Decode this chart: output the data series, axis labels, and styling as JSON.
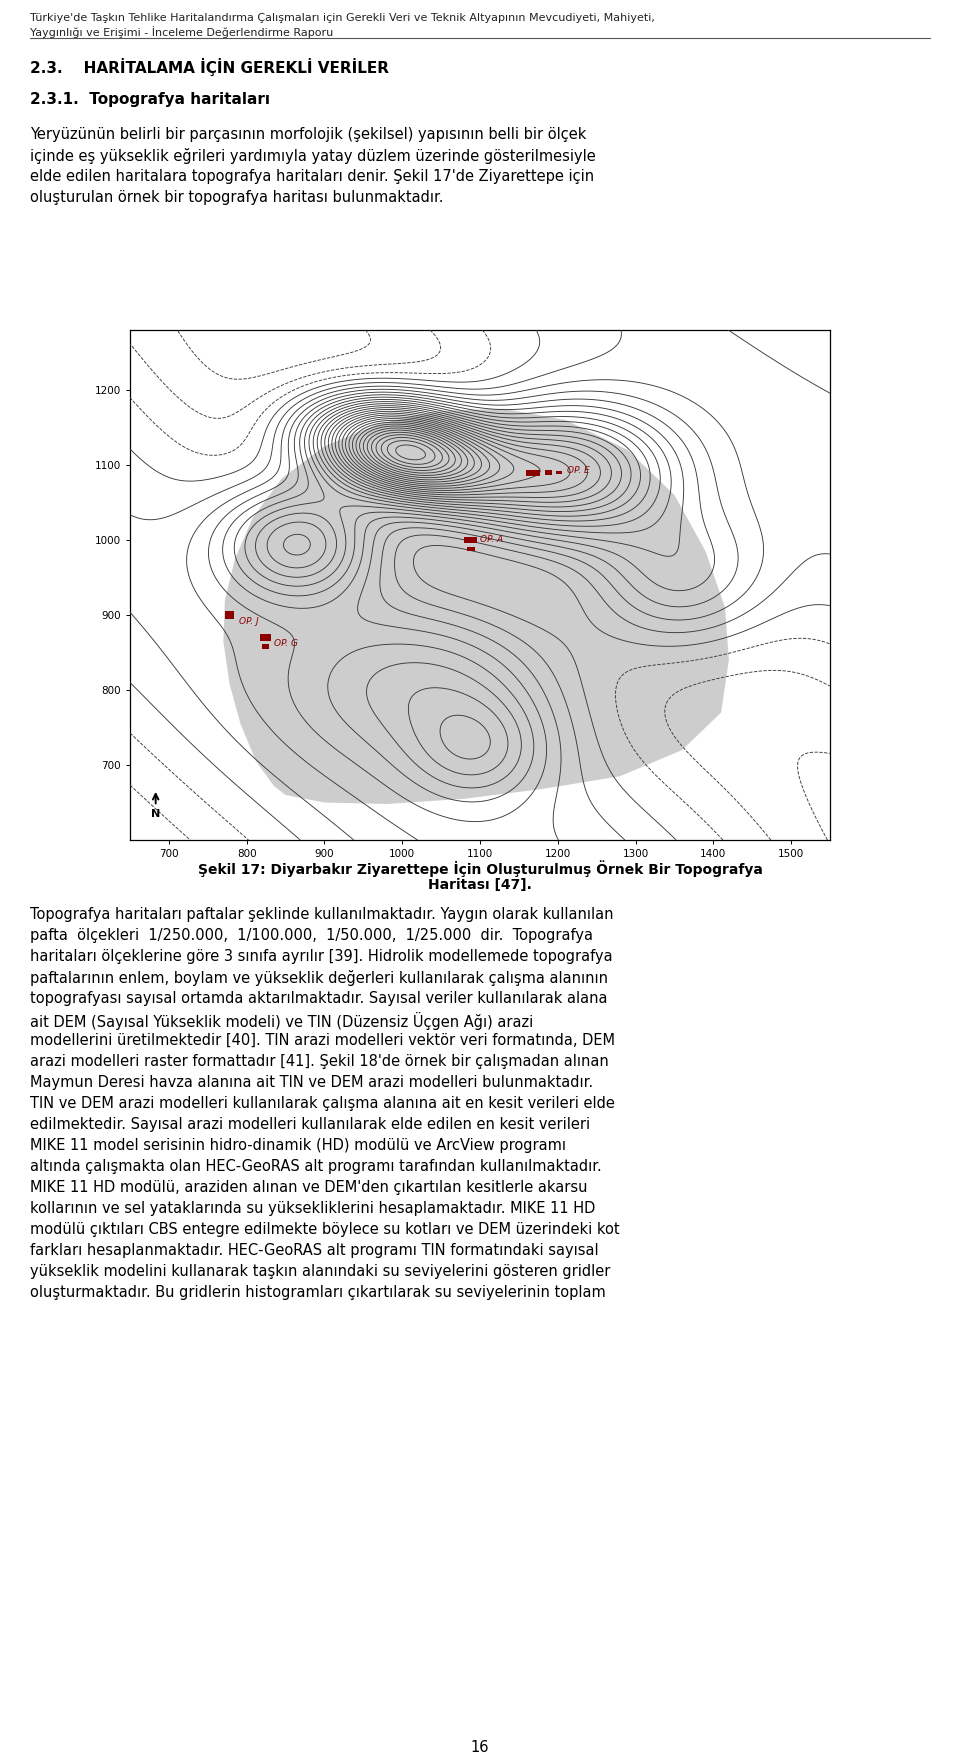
{
  "header_line1": "Türkiye'de Taşkın Tehlike Haritalandırma Çalışmaları için Gerekli Veri ve Teknik Altyapının Mevcudiyeti, Mahiyeti,",
  "header_line2": "Yaygınlığı ve Erişimi - İnceleme Değerlendirme Raporu",
  "section_title": "2.3.    HARİTALAMA İÇİN GEREKLİ VERİLER",
  "subsection_title": "2.3.1.  Topografya haritaları",
  "para1_lines": [
    "Yeryüzünün belirli bir parçasının morfolojik (şekilsel) yapısının belli bir ölçek",
    "içinde eş yükseklik eğrileri yardımıyla yatay düzlem üzerinde gösterilmesiyle",
    "elde edilen haritalara topografya haritaları denir. Şekil 17'de Ziyarettepe için",
    "oluşturulan örnek bir topografya haritası bulunmaktadır."
  ],
  "figure_caption_line1": "Şekil 17: Diyarbakır Ziyarettepe İçin Oluşturulmuş Örnek Bir Topografya",
  "figure_caption_line2": "Haritası [47].",
  "para2_lines": [
    "Topografya haritaları paftalar şeklinde kullanılmaktadır. Yaygın olarak kullanılan",
    "pafta  ölçekleri  1/250.000,  1/100.000,  1/50.000,  1/25.000  dir.  Topografya",
    "haritaları ölçeklerine göre 3 sınıfa ayrılır [39]. Hidrolik modellemede topografya",
    "paftalarının enlem, boylam ve yükseklik değerleri kullanılarak çalışma alanının",
    "topografyası sayısal ortamda aktarılmaktadır. Sayısal veriler kullanılarak alana",
    "ait DEM (Sayısal Yükseklik modeli) ve TIN (Düzensiz Üçgen Ağı) arazi",
    "modellerini üretilmektedir [40]. TIN arazi modelleri vektör veri formatında, DEM",
    "arazi modelleri raster formattadır [41]. Şekil 18'de örnek bir çalışmadan alınan",
    "Maymun Deresi havza alanına ait TIN ve DEM arazi modelleri bulunmaktadır.",
    "TIN ve DEM arazi modelleri kullanılarak çalışma alanına ait en kesit verileri elde",
    "edilmektedir. Sayısal arazi modelleri kullanılarak elde edilen en kesit verileri",
    "MIKE 11 model serisinin hidro-dinamik (HD) modülü ve ArcView programı",
    "altında çalışmakta olan HEC-GeoRAS alt programı tarafından kullanılmaktadır.",
    "MIKE 11 HD modülü, araziden alınan ve DEM'den çıkartılan kesitlerle akarsu",
    "kollarının ve sel yataklarında su yüksekliklerini hesaplamaktadır. MIKE 11 HD",
    "modülü çıktıları CBS entegre edilmekte böylece su kotları ve DEM üzerindeki kot",
    "farkları hesaplanmaktadır. HEC-GeoRAS alt programı TIN formatındaki sayısal",
    "yükseklik modelini kullanarak taşkın alanındaki su seviyelerini gösteren gridler",
    "oluşturmaktadır. Bu gridlerin histogramları çıkartılarak su seviyelerinin toplam"
  ],
  "page_number": "16",
  "bg_color": "#ffffff",
  "marker_color": "#8b0000",
  "map_xlim": [
    650,
    1550
  ],
  "map_ylim": [
    600,
    1280
  ],
  "map_xticks": [
    700,
    800,
    900,
    1000,
    1100,
    1200,
    1300,
    1400,
    1500
  ],
  "map_yticks": [
    700,
    800,
    900,
    1000,
    1100,
    1200
  ]
}
